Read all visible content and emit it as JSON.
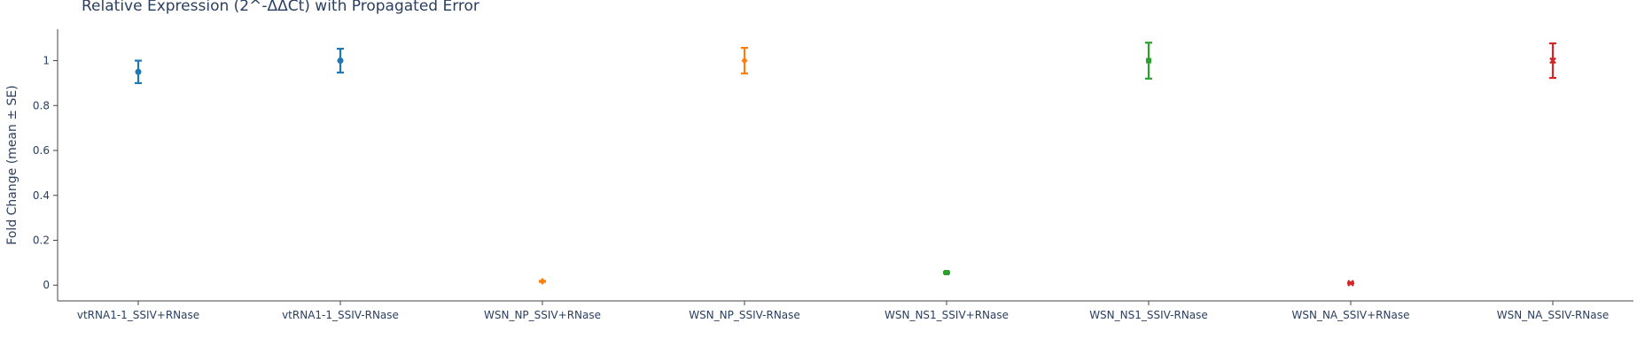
{
  "chart_data": {
    "type": "scatter",
    "title": "Relative Expression (2^-ΔΔCt) with Propagated Error",
    "xlabel": "",
    "ylabel": "Fold Change (mean ± SE)",
    "ylim": [
      -0.07,
      1.14
    ],
    "yticks": [
      0,
      0.2,
      0.4,
      0.6,
      0.8,
      1
    ],
    "grid": false,
    "legend": "none",
    "categories": [
      "vtRNA1-1_SSIV+RNase",
      "vtRNA1-1_SSIV-RNase",
      "WSN_NP_SSIV+RNase",
      "WSN_NP_SSIV-RNase",
      "WSN_NS1_SSIV+RNase",
      "WSN_NS1_SSIV-RNase",
      "WSN_NA_SSIV+RNase",
      "WSN_NA_SSIV-RNase"
    ],
    "points": [
      {
        "category": "vtRNA1-1_SSIV+RNase",
        "y": 0.95,
        "error": 0.05,
        "color": "#1f77b4",
        "marker": "circle"
      },
      {
        "category": "vtRNA1-1_SSIV-RNase",
        "y": 1.0,
        "error": 0.053,
        "color": "#1f77b4",
        "marker": "circle"
      },
      {
        "category": "WSN_NP_SSIV+RNase",
        "y": 0.017,
        "error": 0.002,
        "color": "#ff7f0e",
        "marker": "diamond"
      },
      {
        "category": "WSN_NP_SSIV-RNase",
        "y": 1.0,
        "error": 0.057,
        "color": "#ff7f0e",
        "marker": "diamond"
      },
      {
        "category": "WSN_NS1_SSIV+RNase",
        "y": 0.056,
        "error": 0.003,
        "color": "#2ca02c",
        "marker": "square"
      },
      {
        "category": "WSN_NS1_SSIV-RNase",
        "y": 1.0,
        "error": 0.08,
        "color": "#2ca02c",
        "marker": "square"
      },
      {
        "category": "WSN_NA_SSIV+RNase",
        "y": 0.009,
        "error": 0.001,
        "color": "#d62728",
        "marker": "x"
      },
      {
        "category": "WSN_NA_SSIV-RNase",
        "y": 1.0,
        "error": 0.077,
        "color": "#d62728",
        "marker": "x"
      }
    ]
  }
}
